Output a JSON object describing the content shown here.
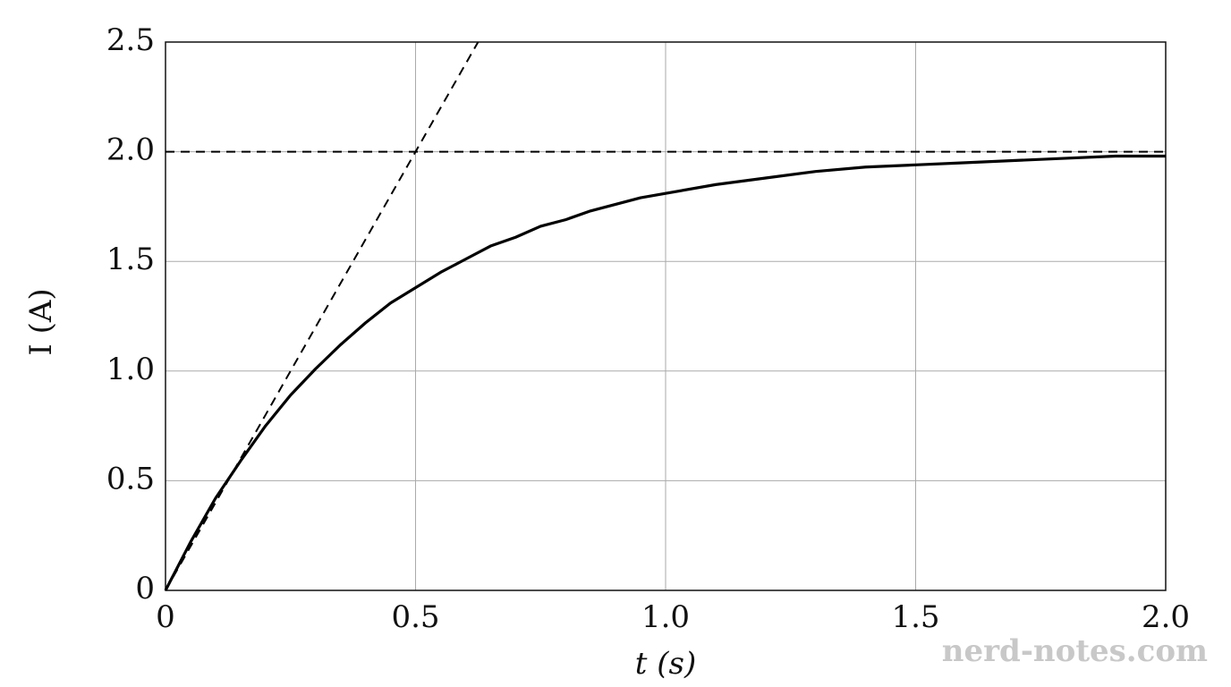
{
  "chart_data": {
    "type": "line",
    "xlabel": "t (s)",
    "ylabel": "I (A)",
    "watermark": "nerd-notes.com",
    "xlim": [
      0,
      2
    ],
    "ylim": [
      0,
      2.5
    ],
    "xticks": [
      0,
      0.5,
      {
        "value": 1,
        "label": "1.0"
      },
      1.5,
      {
        "value": 2,
        "label": "2.0"
      }
    ],
    "yticks": [
      0,
      0.5,
      {
        "value": 1,
        "label": "1.0"
      },
      1.5,
      {
        "value": 2,
        "label": "2.0"
      },
      2.5
    ],
    "grid": true,
    "series": [
      {
        "color": "#000000",
        "dashed": false,
        "x": [
          0,
          0.05,
          0.1,
          0.15,
          0.2,
          0.25,
          0.3,
          0.35,
          0.4,
          0.45,
          0.5,
          0.55,
          0.6,
          0.65,
          0.7,
          0.75,
          0.8,
          0.85,
          0.9,
          0.95,
          1.0,
          1.1,
          1.2,
          1.3,
          1.4,
          1.5,
          1.6,
          1.7,
          1.8,
          1.9,
          2.0
        ],
        "values": [
          0,
          0.22,
          0.42,
          0.59,
          0.75,
          0.89,
          1.01,
          1.12,
          1.22,
          1.31,
          1.38,
          1.45,
          1.51,
          1.57,
          1.61,
          1.66,
          1.69,
          1.73,
          1.76,
          1.79,
          1.81,
          1.85,
          1.88,
          1.91,
          1.93,
          1.94,
          1.95,
          1.96,
          1.97,
          1.98,
          1.98
        ]
      },
      {
        "color": "#000000",
        "dashed": true,
        "x": [
          0,
          0.625
        ],
        "values": [
          0,
          2.5
        ]
      },
      {
        "color": "#000000",
        "dashed": true,
        "x": [
          0,
          2
        ],
        "values": [
          2,
          2
        ]
      }
    ]
  }
}
